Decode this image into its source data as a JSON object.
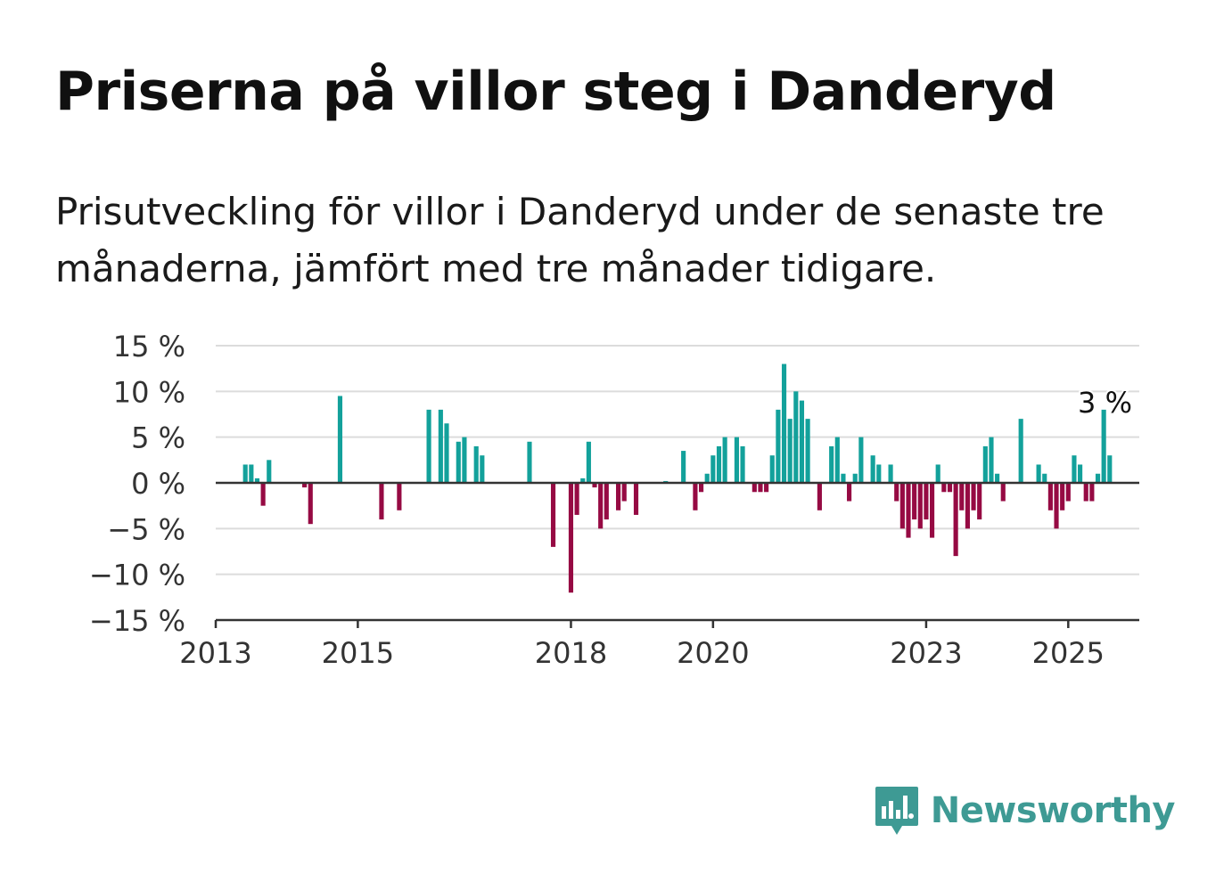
{
  "header": {
    "title": "Priserna på villor steg i Danderyd",
    "subtitle": "Prisutveckling för villor i Danderyd under de senaste tre månaderna, jämfört med tre månader tidigare."
  },
  "brand": {
    "name": "Newsworthy",
    "icon": "newsworthy-logo-icon",
    "color": "#3e9a94"
  },
  "colors": {
    "positive": "#13a19b",
    "negative": "#960a43",
    "grid": "#dcdcdc",
    "axis": "#333333"
  },
  "chart_data": {
    "type": "bar",
    "title": "Priserna på villor steg i Danderyd",
    "subtitle": "Prisutveckling för villor i Danderyd under de senaste tre månaderna, jämfört med tre månader tidigare.",
    "ylim": [
      -15,
      15
    ],
    "yticks": [
      15,
      10,
      5,
      0,
      -5,
      -10,
      -15
    ],
    "ytick_labels": [
      "15 %",
      "10 %",
      "5 %",
      "0 %",
      "−5 %",
      "−10 %",
      "−15 %"
    ],
    "xlim": [
      "2013-01",
      "2026-01"
    ],
    "xticks": [
      "2013",
      "2015",
      "2018",
      "2020",
      "2023",
      "2025"
    ],
    "grid": true,
    "annotation": {
      "label": "3 %",
      "x": "2025-06",
      "y": 3
    },
    "series": [
      {
        "values": [
          {
            "x": "2013-06",
            "y": 2
          },
          {
            "x": "2013-07",
            "y": 2
          },
          {
            "x": "2013-08",
            "y": 0.5
          },
          {
            "x": "2013-09",
            "y": -2.5
          },
          {
            "x": "2013-10",
            "y": 2.5
          },
          {
            "x": "2014-04",
            "y": -0.5
          },
          {
            "x": "2014-05",
            "y": -4.5
          },
          {
            "x": "2014-10",
            "y": 9.5
          },
          {
            "x": "2015-05",
            "y": -4
          },
          {
            "x": "2015-08",
            "y": -3
          },
          {
            "x": "2016-01",
            "y": 8
          },
          {
            "x": "2016-03",
            "y": 8
          },
          {
            "x": "2016-04",
            "y": 6.5
          },
          {
            "x": "2016-06",
            "y": 4.5
          },
          {
            "x": "2016-07",
            "y": 5
          },
          {
            "x": "2016-09",
            "y": 4
          },
          {
            "x": "2016-10",
            "y": 3
          },
          {
            "x": "2017-06",
            "y": 4.5
          },
          {
            "x": "2017-10",
            "y": -7
          },
          {
            "x": "2018-01",
            "y": -12
          },
          {
            "x": "2018-02",
            "y": -3.5
          },
          {
            "x": "2018-03",
            "y": 0.5
          },
          {
            "x": "2018-04",
            "y": 4.5
          },
          {
            "x": "2018-05",
            "y": -0.5
          },
          {
            "x": "2018-06",
            "y": -5
          },
          {
            "x": "2018-07",
            "y": -4
          },
          {
            "x": "2018-09",
            "y": -3
          },
          {
            "x": "2018-10",
            "y": -2
          },
          {
            "x": "2018-12",
            "y": -3.5
          },
          {
            "x": "2019-05",
            "y": 0.2
          },
          {
            "x": "2019-08",
            "y": 3.5
          },
          {
            "x": "2019-10",
            "y": -3
          },
          {
            "x": "2019-11",
            "y": -1
          },
          {
            "x": "2019-12",
            "y": 1
          },
          {
            "x": "2020-01",
            "y": 3
          },
          {
            "x": "2020-02",
            "y": 4
          },
          {
            "x": "2020-03",
            "y": 5
          },
          {
            "x": "2020-05",
            "y": 5
          },
          {
            "x": "2020-06",
            "y": 4
          },
          {
            "x": "2020-08",
            "y": -1
          },
          {
            "x": "2020-09",
            "y": -1
          },
          {
            "x": "2020-10",
            "y": -1
          },
          {
            "x": "2020-11",
            "y": 3
          },
          {
            "x": "2020-12",
            "y": 8
          },
          {
            "x": "2021-01",
            "y": 13
          },
          {
            "x": "2021-02",
            "y": 7
          },
          {
            "x": "2021-03",
            "y": 10
          },
          {
            "x": "2021-04",
            "y": 9
          },
          {
            "x": "2021-05",
            "y": 7
          },
          {
            "x": "2021-07",
            "y": -3
          },
          {
            "x": "2021-09",
            "y": 4
          },
          {
            "x": "2021-10",
            "y": 5
          },
          {
            "x": "2021-11",
            "y": 1
          },
          {
            "x": "2021-12",
            "y": -2
          },
          {
            "x": "2022-01",
            "y": 1
          },
          {
            "x": "2022-02",
            "y": 5
          },
          {
            "x": "2022-04",
            "y": 3
          },
          {
            "x": "2022-05",
            "y": 2
          },
          {
            "x": "2022-07",
            "y": 2
          },
          {
            "x": "2022-08",
            "y": -2
          },
          {
            "x": "2022-09",
            "y": -5
          },
          {
            "x": "2022-10",
            "y": -6
          },
          {
            "x": "2022-11",
            "y": -4
          },
          {
            "x": "2022-12",
            "y": -5
          },
          {
            "x": "2023-01",
            "y": -4
          },
          {
            "x": "2023-02",
            "y": -6
          },
          {
            "x": "2023-03",
            "y": 2
          },
          {
            "x": "2023-04",
            "y": -1
          },
          {
            "x": "2023-05",
            "y": -1
          },
          {
            "x": "2023-06",
            "y": -8
          },
          {
            "x": "2023-07",
            "y": -3
          },
          {
            "x": "2023-08",
            "y": -5
          },
          {
            "x": "2023-09",
            "y": -3
          },
          {
            "x": "2023-10",
            "y": -4
          },
          {
            "x": "2023-11",
            "y": 4
          },
          {
            "x": "2023-12",
            "y": 5
          },
          {
            "x": "2024-01",
            "y": 1
          },
          {
            "x": "2024-02",
            "y": -2
          },
          {
            "x": "2024-05",
            "y": 7
          },
          {
            "x": "2024-08",
            "y": 2
          },
          {
            "x": "2024-09",
            "y": 1
          },
          {
            "x": "2024-10",
            "y": -3
          },
          {
            "x": "2024-11",
            "y": -5
          },
          {
            "x": "2024-12",
            "y": -3
          },
          {
            "x": "2025-01",
            "y": -2
          },
          {
            "x": "2025-02",
            "y": 3
          },
          {
            "x": "2025-03",
            "y": 2
          },
          {
            "x": "2025-04",
            "y": -2
          },
          {
            "x": "2025-05",
            "y": -2
          },
          {
            "x": "2025-06",
            "y": 1
          },
          {
            "x": "2025-07",
            "y": 8
          },
          {
            "x": "2025-08",
            "y": 3
          }
        ]
      }
    ]
  }
}
